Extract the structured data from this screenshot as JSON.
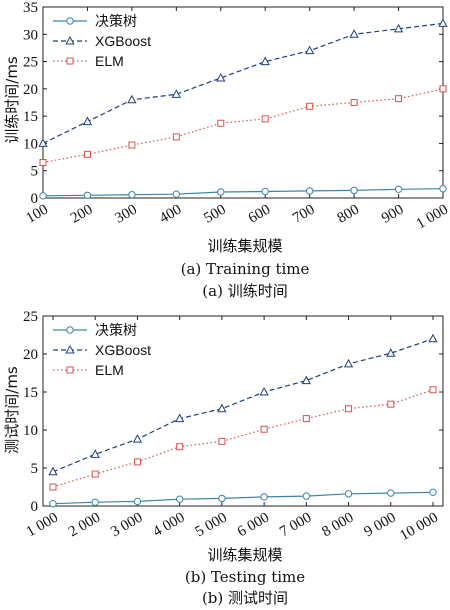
{
  "chart_data": [
    {
      "type": "line",
      "x": [
        100,
        200,
        300,
        400,
        500,
        600,
        700,
        800,
        900,
        1000
      ],
      "x_tick_labels": [
        "100",
        "200",
        "300",
        "400",
        "500",
        "600",
        "700",
        "800",
        "900",
        "1 000"
      ],
      "xlabel": "训练集规模",
      "ylabel": "训练时间/ms",
      "ylim": [
        0,
        35
      ],
      "y_ticks": [
        0,
        5,
        10,
        15,
        20,
        25,
        30,
        35
      ],
      "caption_en": "(a) Training time",
      "caption_cn": "(a) 训练时间",
      "legend_position": "top-left",
      "grid": false,
      "series": [
        {
          "name": "决策树",
          "marker": "circle",
          "dash": "solid",
          "color": "#3a86a8",
          "values": [
            0.4,
            0.5,
            0.6,
            0.7,
            1.1,
            1.2,
            1.3,
            1.4,
            1.6,
            1.7
          ]
        },
        {
          "name": "XGBoost",
          "marker": "triangle",
          "dash": "dashed",
          "color": "#1f3f7a",
          "values": [
            10,
            14,
            18,
            19,
            22,
            25,
            27,
            30,
            31,
            32
          ]
        },
        {
          "name": "ELM",
          "marker": "square",
          "dash": "dotted",
          "color": "#d9534f",
          "values": [
            6.5,
            8,
            9.7,
            11.2,
            13.7,
            14.5,
            16.8,
            17.5,
            18.2,
            20
          ]
        }
      ]
    },
    {
      "type": "line",
      "x": [
        1000,
        2000,
        3000,
        4000,
        5000,
        6000,
        7000,
        8000,
        9000,
        10000
      ],
      "x_tick_labels": [
        "1 000",
        "2 000",
        "3 000",
        "4 000",
        "5 000",
        "6 000",
        "7 000",
        "8 000",
        "9 000",
        "10 000"
      ],
      "xlabel": "训练集规模",
      "ylabel": "测试时间/ms",
      "ylim": [
        0,
        25
      ],
      "y_ticks": [
        0,
        5,
        10,
        15,
        20,
        25
      ],
      "caption_en": "(b) Testing time",
      "caption_cn": "(b) 测试时间",
      "legend_position": "top-left",
      "grid": false,
      "series": [
        {
          "name": "决策树",
          "marker": "circle",
          "dash": "solid",
          "color": "#3a86a8",
          "values": [
            0.3,
            0.5,
            0.6,
            0.9,
            1.0,
            1.2,
            1.3,
            1.6,
            1.7,
            1.8
          ]
        },
        {
          "name": "XGBoost",
          "marker": "triangle",
          "dash": "dashed",
          "color": "#1f3f7a",
          "values": [
            4.5,
            6.8,
            8.8,
            11.5,
            12.8,
            15,
            16.5,
            18.7,
            20.1,
            22
          ]
        },
        {
          "name": "ELM",
          "marker": "square",
          "dash": "dotted",
          "color": "#d9534f",
          "values": [
            2.5,
            4.2,
            5.8,
            7.8,
            8.5,
            10.1,
            11.5,
            12.8,
            13.4,
            15.3
          ]
        }
      ]
    }
  ]
}
